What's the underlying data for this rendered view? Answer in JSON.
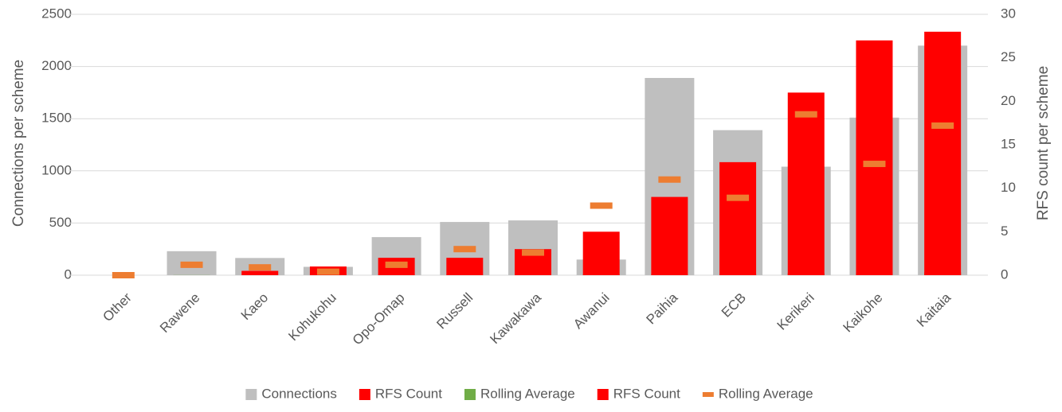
{
  "chart_data": {
    "type": "combo",
    "ylabel": "Connections per scheme",
    "y2label": "RFS count per scheme",
    "categories": [
      "Other",
      "Rawene",
      "Kaeo",
      "Kohukohu",
      "Opo-Omap",
      "Russell",
      "Kawakawa",
      "Awanui",
      "Paihia",
      "ECB",
      "Kerikeri",
      "Kaikohe",
      "Kaitaia"
    ],
    "ylim": [
      0,
      2500
    ],
    "yticks": [
      0,
      500,
      1000,
      1500,
      2000,
      2500
    ],
    "y2lim": [
      0,
      30
    ],
    "y2ticks": [
      0,
      5,
      10,
      15,
      20,
      25,
      30
    ],
    "grid": true,
    "legend": "bottom",
    "series": [
      {
        "name": "Connections",
        "type": "bar",
        "color": "#bfbfbf",
        "values": [
          0,
          230,
          165,
          80,
          365,
          510,
          525,
          150,
          1890,
          1390,
          1040,
          1510,
          2200
        ]
      },
      {
        "name": "RFS Count",
        "type": "bar",
        "color": "#ff0000",
        "values": [
          0,
          0,
          0.5,
          1,
          2,
          2,
          3,
          5,
          9,
          13,
          21,
          27,
          28
        ]
      },
      {
        "name": "Rolling Average",
        "type": "bar",
        "color": "#70ad47",
        "values": [
          0,
          1.2,
          0.9,
          0.4,
          1.2,
          3,
          2.6,
          8,
          11,
          8.9,
          18.5,
          12.8,
          17.2
        ]
      },
      {
        "name": "RFS Count",
        "type": "bar",
        "axis": "y2",
        "color": "#ff0000",
        "values": [
          0,
          0,
          0.5,
          1,
          2,
          2,
          3,
          5,
          9,
          13,
          21,
          27,
          28
        ]
      },
      {
        "name": "Rolling Average",
        "type": "marker",
        "axis": "y2",
        "color": "#ed7d31",
        "values": [
          0,
          1.2,
          0.9,
          0.4,
          1.2,
          3,
          2.6,
          8,
          11,
          8.9,
          18.5,
          12.8,
          17.2
        ]
      }
    ]
  }
}
